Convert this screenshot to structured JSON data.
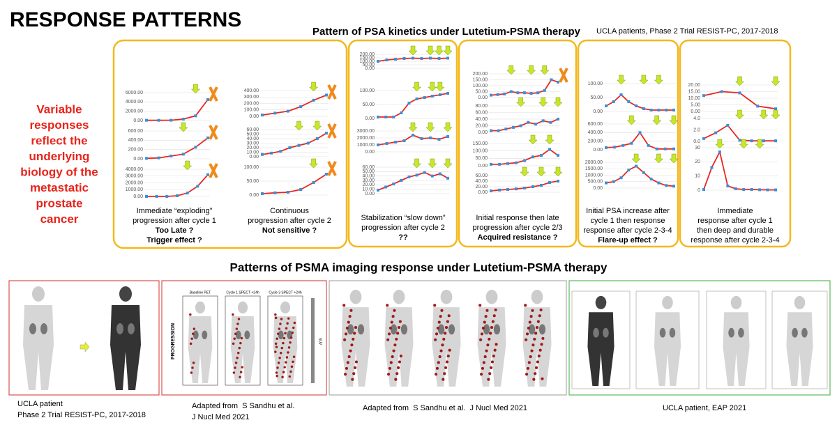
{
  "title": "RESPONSE PATTERNS",
  "side_text": [
    "Variable",
    "responses",
    "reflect the",
    "underlying",
    "biology of the",
    "metastatic",
    "prostate",
    "cancer"
  ],
  "psa": {
    "title": "Pattern of PSA kinetics under Lutetium-PSMA therapy",
    "source": "UCLA patients, Phase 2 Trial RESIST-PC, 2017-2018",
    "panels": [
      {
        "charts": [
          {
            "ylim": [
              0,
              6000
            ],
            "yticks": [
              {
                "value": 0,
                "label": "0.00"
              },
              {
                "value": 2000,
                "label": "2000.00"
              },
              {
                "value": 4000,
                "label": "4000.00"
              },
              {
                "value": 6000,
                "label": "6000.00"
              }
            ],
            "values": [
              50,
              40,
              60,
              300,
              1000,
              4500
            ]
          },
          {
            "ylim": [
              0,
              600
            ],
            "yticks": [
              {
                "value": 0,
                "label": "0.00"
              },
              {
                "value": 200,
                "label": "200.00"
              },
              {
                "value": 400,
                "label": "400.00"
              },
              {
                "value": 600,
                "label": "600.00"
              }
            ],
            "values": [
              10,
              20,
              60,
              100,
              250,
              450
            ]
          },
          {
            "ylim": [
              0,
              4000
            ],
            "yticks": [
              {
                "value": 0,
                "label": "0.00"
              },
              {
                "value": 1000,
                "label": "1000.00"
              },
              {
                "value": 2000,
                "label": "2000.00"
              },
              {
                "value": 3000,
                "label": "3000.00"
              },
              {
                "value": 4000,
                "label": "4000.00"
              }
            ],
            "values": [
              0,
              0,
              0,
              100,
              500,
              1500,
              3200
            ]
          }
        ],
        "caption": [
          "Immediate “exploding”",
          "progression after cycle 1"
        ],
        "note": [
          "Too Late ?",
          "Trigger effect ?"
        ]
      },
      {
        "charts": [
          {
            "ylim": [
              0,
              400
            ],
            "yticks": [
              {
                "value": 0,
                "label": "0.00"
              },
              {
                "value": 100,
                "label": "100.00"
              },
              {
                "value": 200,
                "label": "200.00"
              },
              {
                "value": 300,
                "label": "300.00"
              },
              {
                "value": 400,
                "label": "400.00"
              }
            ],
            "values": [
              20,
              50,
              80,
              150,
              250,
              330
            ]
          },
          {
            "ylim": [
              0,
              60
            ],
            "yticks": [
              {
                "value": 0,
                "label": "0.00"
              },
              {
                "value": 10,
                "label": "10.00"
              },
              {
                "value": 20,
                "label": "20.00"
              },
              {
                "value": 30,
                "label": "30.00"
              },
              {
                "value": 40,
                "label": "40.00"
              },
              {
                "value": 50,
                "label": "50.00"
              },
              {
                "value": 60,
                "label": "60.00"
              }
            ],
            "values": [
              5,
              8,
              12,
              20,
              25,
              30,
              40,
              52
            ]
          },
          {
            "ylim": [
              0,
              100
            ],
            "yticks": [
              {
                "value": 0,
                "label": "0.00"
              },
              {
                "value": 50,
                "label": "50.00"
              },
              {
                "value": 100,
                "label": "100.00"
              }
            ],
            "values": [
              5,
              8,
              10,
              20,
              45,
              75
            ]
          }
        ],
        "caption": [
          "Continuous",
          "progression after cycle 2"
        ],
        "note": [
          "Not sensitive ?"
        ]
      },
      {
        "charts": [
          {
            "ylim": [
              0,
              200
            ],
            "yticks": [
              {
                "value": 0,
                "label": "0.00"
              },
              {
                "value": 50,
                "label": "50.00"
              },
              {
                "value": 100,
                "label": "100.00"
              },
              {
                "value": 150,
                "label": "150.00"
              },
              {
                "value": 200,
                "label": "200.00"
              }
            ],
            "values": [
              100,
              120,
              130,
              140,
              145,
              140,
              145,
              140,
              145
            ]
          },
          {
            "ylim": [
              0,
              100
            ],
            "yticks": [
              {
                "value": 0,
                "label": "0.00"
              },
              {
                "value": 50,
                "label": "50.00"
              },
              {
                "value": 100,
                "label": "100.00"
              }
            ],
            "values": [
              5,
              5,
              5,
              20,
              55,
              70,
              75,
              80,
              85,
              90
            ]
          },
          {
            "ylim": [
              0,
              3000
            ],
            "yticks": [
              {
                "value": 0,
                "label": "0.00"
              },
              {
                "value": 1000,
                "label": "1000.00"
              },
              {
                "value": 2000,
                "label": "2000.00"
              },
              {
                "value": 3000,
                "label": "3000.00"
              }
            ],
            "values": [
              1000,
              1200,
              1400,
              1600,
              2400,
              1900,
              2000,
              1800,
              2200
            ]
          },
          {
            "ylim": [
              0,
              60
            ],
            "yticks": [
              {
                "value": 0,
                "label": "0.00"
              },
              {
                "value": 10,
                "label": "10.00"
              },
              {
                "value": 20,
                "label": "20.00"
              },
              {
                "value": 30,
                "label": "30.00"
              },
              {
                "value": 40,
                "label": "40.00"
              },
              {
                "value": 50,
                "label": "50.00"
              },
              {
                "value": 60,
                "label": "60.00"
              }
            ],
            "values": [
              8,
              15,
              22,
              30,
              38,
              42,
              48,
              40,
              45,
              35
            ]
          }
        ],
        "caption": [
          "Stabilization “slow down”",
          "progression after cycle 2"
        ],
        "note": [
          "??"
        ]
      },
      {
        "charts": [
          {
            "ylim": [
              0,
              200
            ],
            "yticks": [
              {
                "value": 0,
                "label": "0.00"
              },
              {
                "value": 50,
                "label": "50.00"
              },
              {
                "value": 100,
                "label": "100.00"
              },
              {
                "value": 150,
                "label": "150.00"
              },
              {
                "value": 200,
                "label": "200.00"
              }
            ],
            "values": [
              20,
              25,
              30,
              50,
              40,
              40,
              35,
              40,
              60,
              150,
              130
            ]
          },
          {
            "ylim": [
              0,
              80
            ],
            "yticks": [
              {
                "value": 0,
                "label": "0.00"
              },
              {
                "value": 20,
                "label": "20.00"
              },
              {
                "value": 40,
                "label": "40.00"
              },
              {
                "value": 60,
                "label": "60.00"
              },
              {
                "value": 80,
                "label": "80.00"
              }
            ],
            "values": [
              5,
              5,
              10,
              15,
              20,
              30,
              25,
              35,
              30,
              40
            ]
          },
          {
            "ylim": [
              0,
              150
            ],
            "yticks": [
              {
                "value": 0,
                "label": "0.00"
              },
              {
                "value": 50,
                "label": "50.00"
              },
              {
                "value": 100,
                "label": "100.00"
              },
              {
                "value": 150,
                "label": "150.00"
              }
            ],
            "values": [
              10,
              10,
              15,
              20,
              35,
              60,
              70,
              110,
              70
            ]
          },
          {
            "ylim": [
              0,
              60
            ],
            "yticks": [
              {
                "value": 0,
                "label": "0.00"
              },
              {
                "value": 20,
                "label": "20.00"
              },
              {
                "value": 40,
                "label": "40.00"
              },
              {
                "value": 60,
                "label": "60.00"
              }
            ],
            "values": [
              5,
              8,
              10,
              12,
              15,
              20,
              25,
              35,
              40
            ]
          }
        ],
        "caption": [
          "Initial response then late",
          "progression after cycle 2/3"
        ],
        "note": [
          "Acquired resistance ?"
        ]
      },
      {
        "charts": [
          {
            "ylim": [
              0,
              100
            ],
            "yticks": [
              {
                "value": 0,
                "label": "0.00"
              },
              {
                "value": 50,
                "label": "50.00"
              },
              {
                "value": 100,
                "label": "100.00"
              }
            ],
            "values": [
              20,
              35,
              60,
              35,
              20,
              10,
              5,
              5,
              5,
              5
            ]
          },
          {
            "ylim": [
              0,
              600
            ],
            "yticks": [
              {
                "value": 0,
                "label": "0.00"
              },
              {
                "value": 200,
                "label": "200.00"
              },
              {
                "value": 400,
                "label": "400.00"
              },
              {
                "value": 600,
                "label": "600.00"
              }
            ],
            "values": [
              50,
              60,
              100,
              150,
              400,
              100,
              20,
              20,
              20
            ]
          },
          {
            "ylim": [
              0,
              2000
            ],
            "yticks": [
              {
                "value": 0,
                "label": "0.00"
              },
              {
                "value": 500,
                "label": "500.00"
              },
              {
                "value": 1000,
                "label": "1000.00"
              },
              {
                "value": 1500,
                "label": "1500.00"
              },
              {
                "value": 2000,
                "label": "2000.00"
              }
            ],
            "values": [
              400,
              500,
              800,
              1400,
              1700,
              1200,
              700,
              400,
              200,
              150
            ]
          }
        ],
        "caption": [
          "Initial PSA increase after",
          "cycle 1 then response",
          "response after cycle 2-3-4"
        ],
        "note": [
          "Flare-up effect ?"
        ]
      },
      {
        "charts": [
          {
            "ylim": [
              0,
              20
            ],
            "yticks": [
              {
                "value": 0,
                "label": "0.00"
              },
              {
                "value": 5,
                "label": "5.00"
              },
              {
                "value": 10,
                "label": "10.00"
              },
              {
                "value": 15,
                "label": "15.00"
              },
              {
                "value": 20,
                "label": "20.00"
              }
            ],
            "values": [
              12,
              15,
              14,
              4,
              2
            ]
          },
          {
            "ylim": [
              0,
              4
            ],
            "yticks": [
              {
                "value": 0,
                "label": "0.0"
              },
              {
                "value": 2,
                "label": "2.0"
              },
              {
                "value": 4,
                "label": "4.0"
              }
            ],
            "values": [
              0.5,
              1.5,
              2.8,
              0.2,
              0.1,
              0.1,
              0.1
            ]
          },
          {
            "ylim": [
              0,
              30
            ],
            "yticks": [
              {
                "value": 0,
                "label": "0"
              },
              {
                "value": 10,
                "label": "10"
              },
              {
                "value": 20,
                "label": "20"
              },
              {
                "value": 30,
                "label": "30"
              }
            ],
            "values": [
              0.5,
              16,
              27,
              3,
              1,
              0.5,
              0.5,
              0.3,
              0.2,
              0.2
            ]
          }
        ],
        "caption": [
          "Immediate",
          "response after cycle 1",
          "then deep and durable",
          "response after cycle 2-3-4"
        ],
        "note": []
      }
    ]
  },
  "imaging": {
    "title": "Patterns of PSMA imaging response under Lutetium-PSMA therapy",
    "panels": [
      {
        "caption": [
          "UCLA patient",
          "Phase 2 Trial RESIST-PC, 2017-2018"
        ]
      },
      {
        "labels": [
          "Baseline PET",
          "Cycle 1 SPECT +24h",
          "Cycle 3 SPECT +24h"
        ],
        "side": "PROGRESSION",
        "scale": "SUV",
        "caption": [
          "Adapted from  S Sandhu et al.",
          "J Nucl Med 2021"
        ]
      },
      {
        "caption": [
          "Adapted from  S Sandhu et al.  J Nucl Med 2021"
        ]
      },
      {
        "caption": [
          "UCLA patient, EAP 2021"
        ]
      }
    ]
  }
}
